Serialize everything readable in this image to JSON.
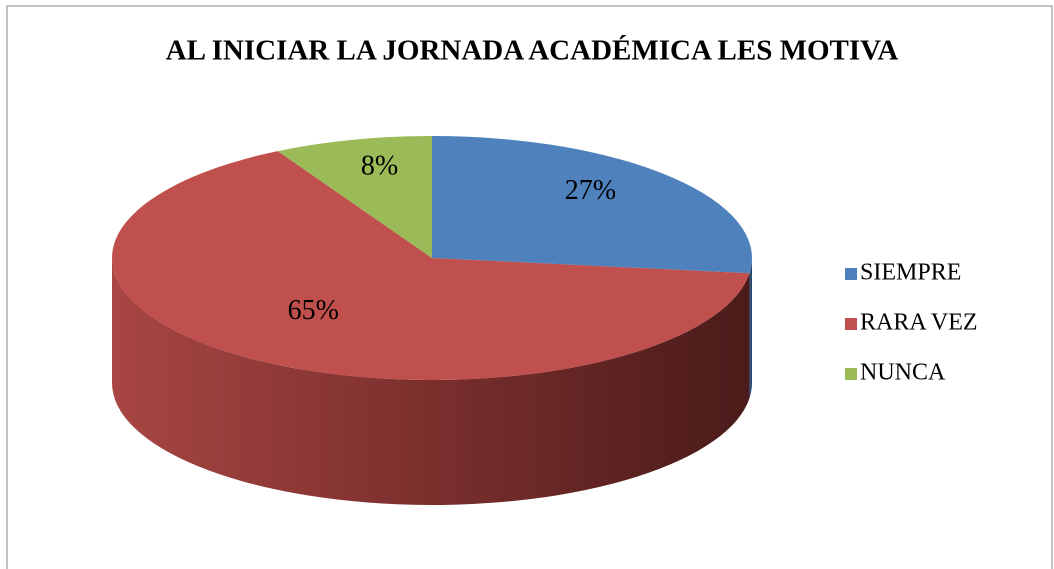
{
  "chart_data": {
    "type": "pie",
    "title": "AL INICIAR LA JORNADA ACADÉMICA LES MOTIVA",
    "categories": [
      "SIEMPRE",
      "RARA VEZ",
      "NUNCA"
    ],
    "values": [
      27,
      65,
      8
    ],
    "value_labels": [
      "27%",
      "65%",
      "8%"
    ],
    "colors": [
      "#4f81bd",
      "#c0504d",
      "#9bbb59"
    ],
    "legend": "right"
  }
}
